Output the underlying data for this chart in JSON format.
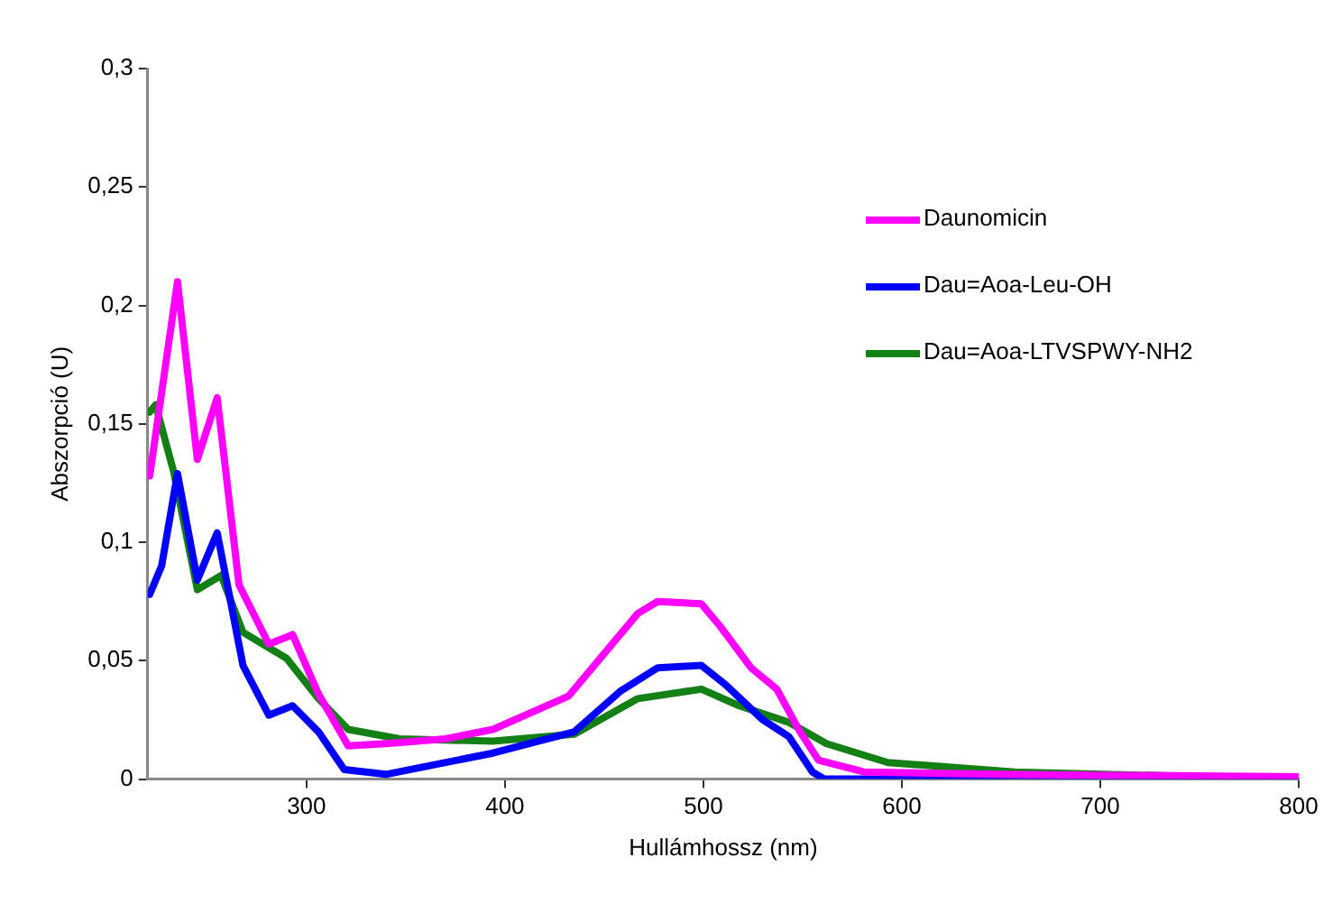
{
  "chart_data": {
    "type": "line",
    "xlabel": "Hullámhossz (nm)",
    "ylabel": "Abszorpció (U)",
    "xlim": [
      220,
      800
    ],
    "xticks": [
      300,
      400,
      500,
      600,
      700,
      800
    ],
    "ylim": [
      0,
      0.3
    ],
    "yticks": [
      0,
      {
        "value": 0.05,
        "label": "0,05"
      },
      {
        "value": 0.1,
        "label": "0,1"
      },
      {
        "value": 0.15,
        "label": "0,15"
      },
      {
        "value": 0.2,
        "label": "0,2"
      },
      {
        "value": 0.25,
        "label": "0,25"
      },
      {
        "value": 0.3,
        "label": "0,3"
      }
    ],
    "grid": false,
    "legend": "right",
    "marker": "none",
    "line_style": "solid",
    "series": [
      {
        "name": "Daunomicin",
        "color": "#ff00ff",
        "x": [
          221,
          235,
          245,
          255,
          266,
          281,
          293,
          306,
          321,
          340,
          370,
          394,
          432,
          467,
          477,
          499,
          508,
          524,
          537,
          548,
          558,
          581,
          650,
          800
        ],
        "values": [
          0.128,
          0.21,
          0.135,
          0.161,
          0.082,
          0.057,
          0.061,
          0.036,
          0.014,
          0.015,
          0.017,
          0.021,
          0.035,
          0.07,
          0.075,
          0.074,
          0.065,
          0.047,
          0.038,
          0.021,
          0.008,
          0.003,
          0.002,
          0.001
        ]
      },
      {
        "name": "Dau=Aoa-Leu-OH",
        "color": "#0000ff",
        "x": [
          221,
          227,
          235,
          245,
          255,
          268,
          281,
          293,
          306,
          319,
          340,
          394,
          435,
          458,
          477,
          499,
          511,
          530,
          543,
          555,
          561,
          650,
          800
        ],
        "values": [
          0.078,
          0.09,
          0.129,
          0.084,
          0.104,
          0.048,
          0.027,
          0.031,
          0.02,
          0.004,
          0.002,
          0.011,
          0.02,
          0.037,
          0.047,
          0.048,
          0.04,
          0.025,
          0.018,
          0.003,
          0,
          0,
          0
        ]
      },
      {
        "name": "Dau=Aoa-LTVSPWY-NH2",
        "color": "#138013",
        "x": [
          221,
          224,
          233,
          245,
          257,
          268,
          290,
          306,
          321,
          347,
          394,
          435,
          467,
          499,
          518,
          543,
          562,
          593,
          657,
          800
        ],
        "values": [
          0.155,
          0.158,
          0.13,
          0.08,
          0.086,
          0.062,
          0.051,
          0.034,
          0.021,
          0.017,
          0.016,
          0.019,
          0.034,
          0.038,
          0.031,
          0.024,
          0.015,
          0.007,
          0.003,
          0
        ]
      }
    ]
  }
}
